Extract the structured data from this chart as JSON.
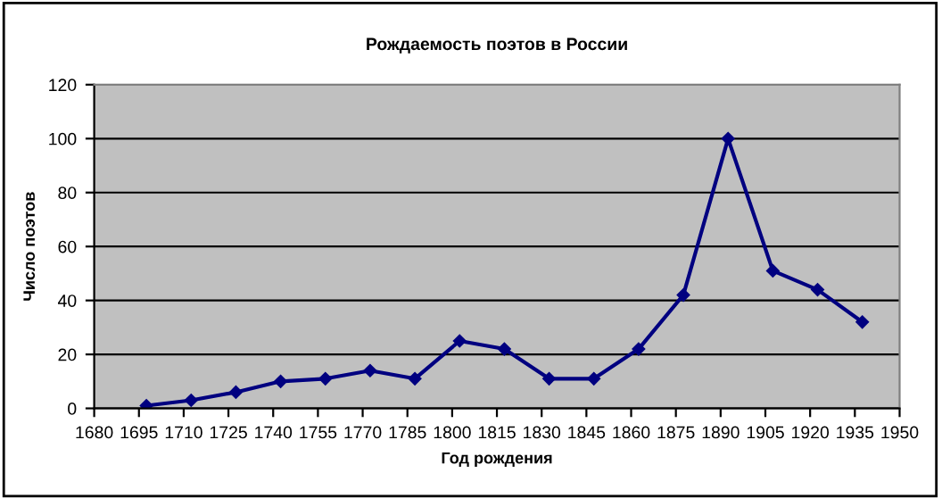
{
  "chart_data": {
    "type": "line",
    "title": "Рождаемость поэтов в России",
    "xlabel": "Год рождения",
    "ylabel": "Число поэтов",
    "x": [
      1697.5,
      1712.5,
      1727.5,
      1742.5,
      1757.5,
      1772.5,
      1787.5,
      1802.5,
      1817.5,
      1832.5,
      1847.5,
      1862.5,
      1877.5,
      1892.5,
      1907.5,
      1922.5,
      1937.5
    ],
    "series": [
      {
        "color": "#000080",
        "values": [
          1,
          3,
          6,
          10,
          11,
          14,
          11,
          25,
          22,
          11,
          11,
          22,
          42,
          100,
          51,
          44,
          32
        ]
      }
    ],
    "xlim": [
      1680,
      1950
    ],
    "xticks": [
      1680,
      1695,
      1710,
      1725,
      1740,
      1755,
      1770,
      1785,
      1800,
      1815,
      1830,
      1845,
      1860,
      1875,
      1890,
      1905,
      1920,
      1935,
      1950
    ],
    "ylim": [
      0,
      120
    ],
    "yticks": [
      0,
      20,
      40,
      60,
      80,
      100,
      120
    ],
    "grid": "y",
    "marker": "diamond",
    "line_style": "solid",
    "legend": false
  }
}
